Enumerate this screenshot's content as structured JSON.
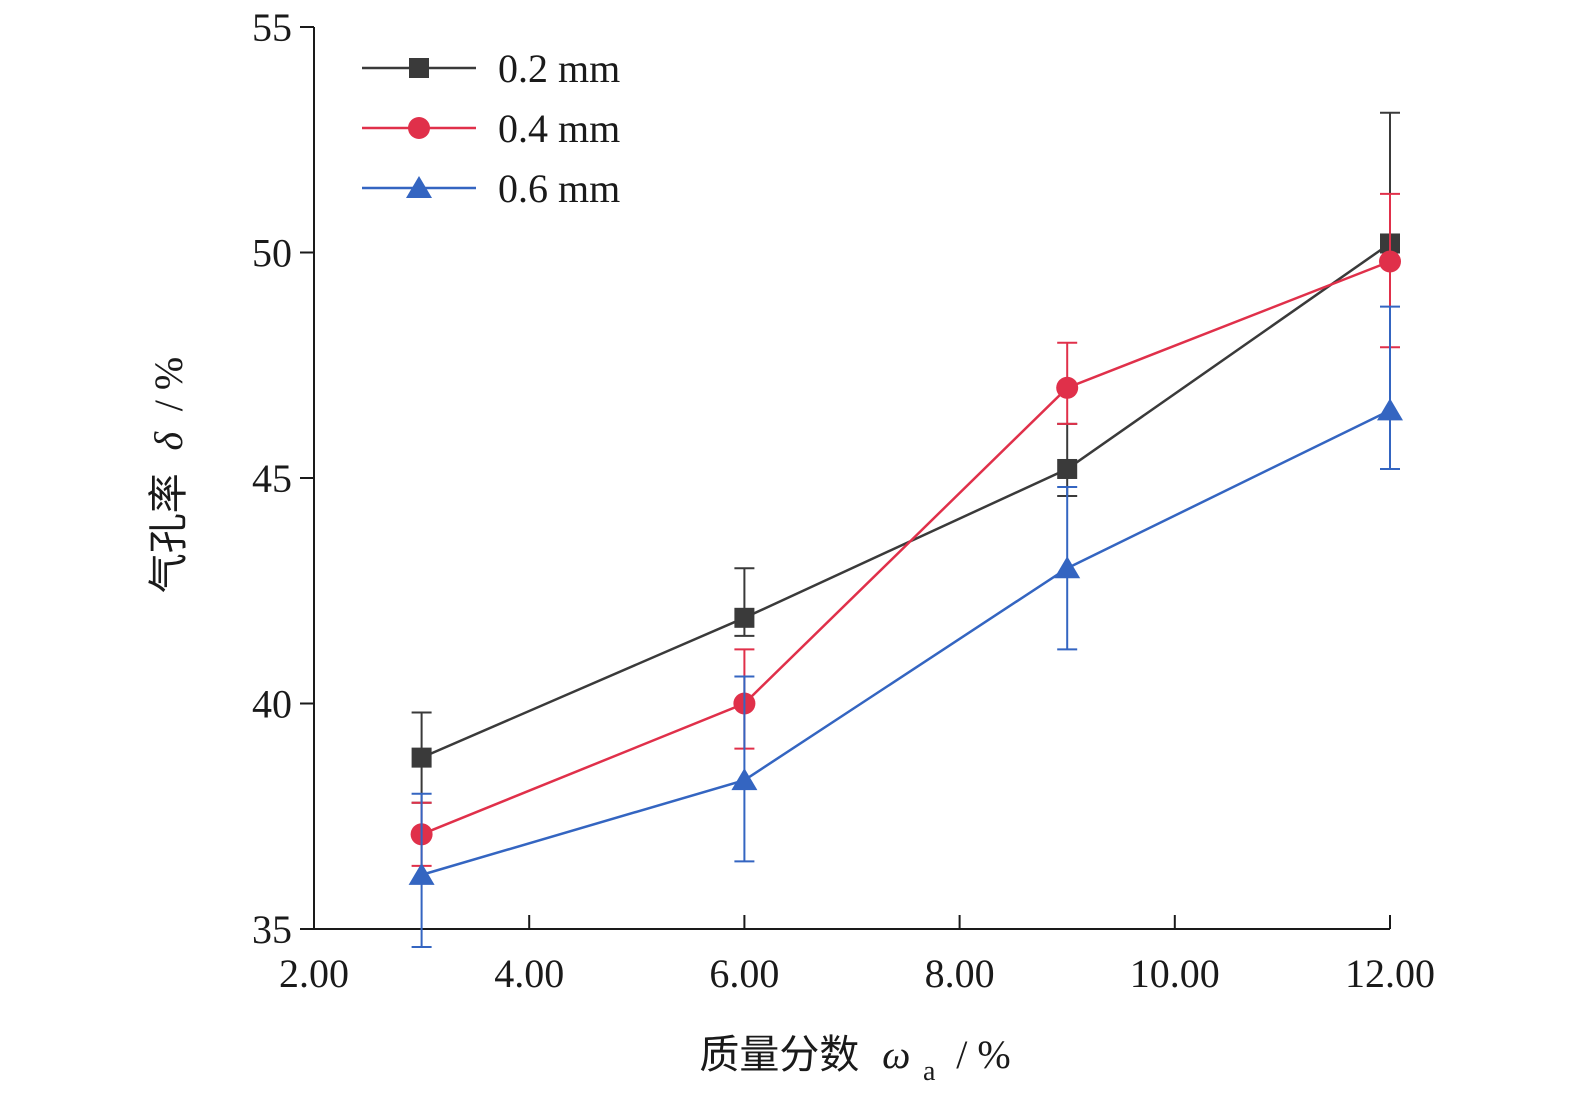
{
  "chart_data": {
    "type": "line",
    "xlabel": "质量分数",
    "xlabel_symbol": "ω",
    "xlabel_subscript": "a",
    "xlabel_unit": "/ %",
    "ylabel": "气孔率",
    "ylabel_symbol": "δ",
    "ylabel_unit": "/ %",
    "xlim": [
      2,
      12
    ],
    "ylim": [
      35,
      55
    ],
    "x_ticks": [
      2,
      4,
      6,
      8,
      10,
      12
    ],
    "x_tick_labels": [
      "2.00",
      "4.00",
      "6.00",
      "8.00",
      "10.00",
      "12.00"
    ],
    "y_ticks": [
      35,
      40,
      45,
      50,
      55
    ],
    "y_tick_labels": [
      "35",
      "40",
      "45",
      "50",
      "55"
    ],
    "grid": false,
    "legend_position": "top-left",
    "x": [
      3,
      6,
      9,
      12
    ],
    "series": [
      {
        "name": "0.2 mm",
        "marker": "square",
        "color": "#3a3a3a",
        "values": [
          38.8,
          41.9,
          45.2,
          50.2
        ],
        "error_low": [
          37.8,
          41.5,
          44.6,
          50.2
        ],
        "error_high": [
          39.8,
          43.0,
          46.2,
          53.1
        ]
      },
      {
        "name": "0.4 mm",
        "marker": "circle",
        "color": "#e0304a",
        "values": [
          37.1,
          40.0,
          47.0,
          49.8
        ],
        "error_low": [
          36.4,
          39.0,
          46.2,
          47.9
        ],
        "error_high": [
          37.8,
          41.2,
          48.0,
          51.3
        ]
      },
      {
        "name": "0.6 mm",
        "marker": "triangle",
        "color": "#3465c1",
        "values": [
          36.2,
          38.3,
          43.0,
          46.5
        ],
        "error_low": [
          34.6,
          36.5,
          41.2,
          45.2
        ],
        "error_high": [
          38.0,
          40.6,
          44.8,
          48.8
        ]
      }
    ]
  }
}
